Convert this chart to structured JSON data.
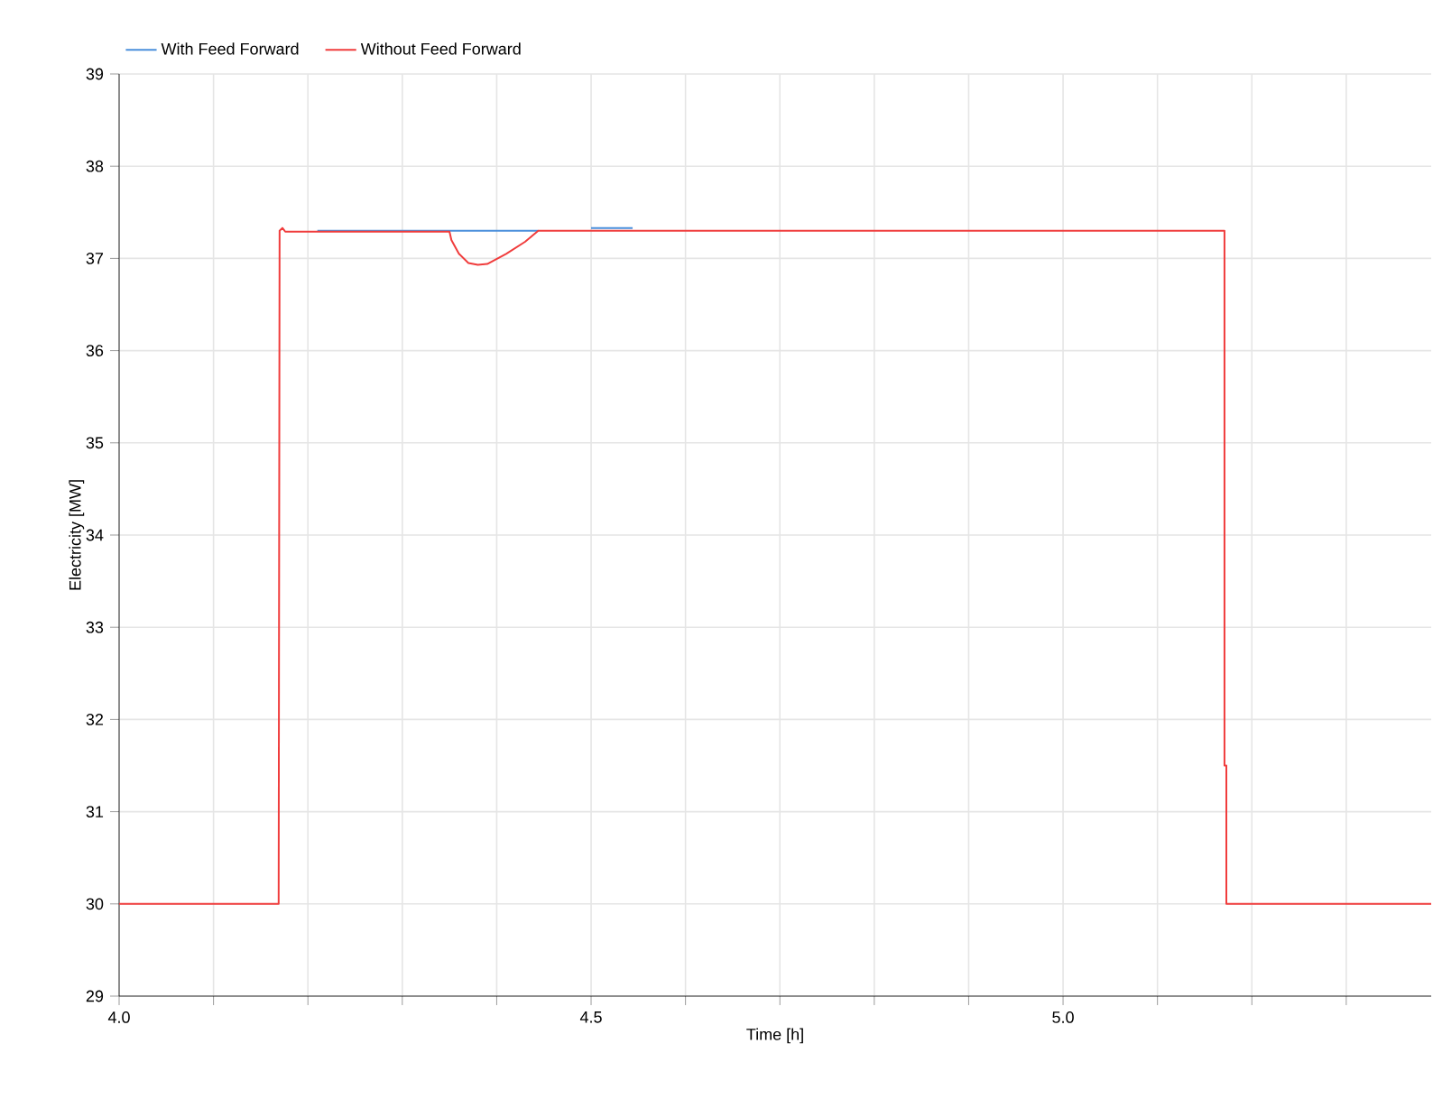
{
  "chart_data": {
    "type": "line",
    "xlabel": "Time [h]",
    "ylabel": "Electricity [MW]",
    "xlim": [
      4.0,
      5.39
    ],
    "ylim": [
      29,
      39
    ],
    "xticks": [
      {
        "value": 4.0,
        "label": "4.0"
      },
      {
        "value": 4.1,
        "label": null
      },
      {
        "value": 4.2,
        "label": null
      },
      {
        "value": 4.3,
        "label": null
      },
      {
        "value": 4.4,
        "label": null
      },
      {
        "value": 4.5,
        "label": "4.5"
      },
      {
        "value": 4.6,
        "label": null
      },
      {
        "value": 4.7,
        "label": null
      },
      {
        "value": 4.8,
        "label": null
      },
      {
        "value": 4.9,
        "label": null
      },
      {
        "value": 5.0,
        "label": "5.0"
      },
      {
        "value": 5.1,
        "label": null
      },
      {
        "value": 5.2,
        "label": null
      },
      {
        "value": 5.3,
        "label": null
      }
    ],
    "yticks": [
      29,
      30,
      31,
      32,
      33,
      34,
      35,
      36,
      37,
      38,
      39
    ],
    "grid": true,
    "legend": "top",
    "marker": "none",
    "line_style": "solid",
    "series": [
      {
        "name": "With Feed Forward",
        "color": "#4a8fdb",
        "x": [
          4.21,
          4.444,
          4.47,
          4.5,
          4.544
        ],
        "values": [
          37.3,
          37.3,
          null,
          37.33,
          37.33
        ]
      },
      {
        "name": "Without Feed Forward",
        "color": "#f03c3c",
        "x": [
          4.0,
          4.169,
          4.17,
          4.173,
          4.176,
          4.35,
          4.352,
          4.36,
          4.37,
          4.38,
          4.39,
          4.41,
          4.43,
          4.444,
          5.171,
          5.171,
          5.173,
          5.173,
          5.39
        ],
        "values": [
          30,
          30,
          37.3,
          37.33,
          37.29,
          37.29,
          37.2,
          37.05,
          36.95,
          36.93,
          36.94,
          37.05,
          37.18,
          37.3,
          37.3,
          31.5,
          31.5,
          30,
          30
        ]
      }
    ]
  }
}
